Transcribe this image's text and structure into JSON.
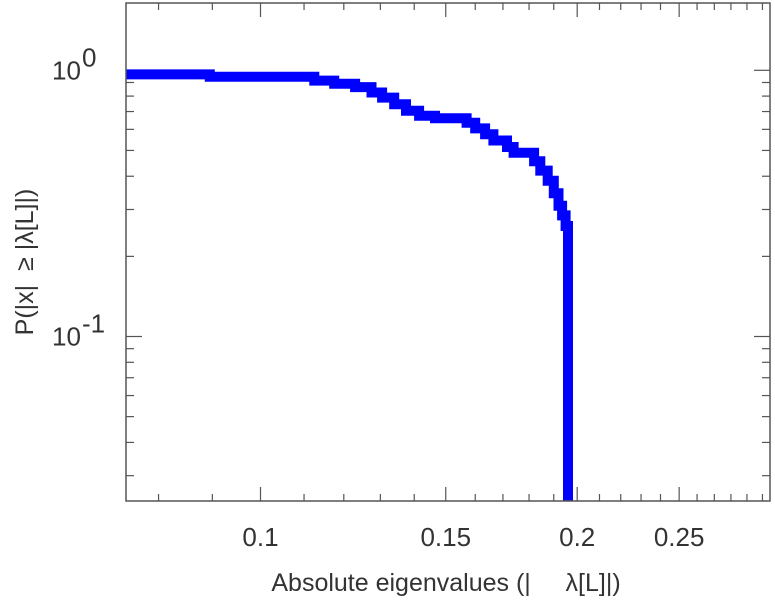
{
  "chart_data": {
    "type": "line",
    "title": "",
    "xlabel": "Absolute eigenvalues (|     λ[L]|)",
    "ylabel": "P(|x|  ≥ |λ[L]|)",
    "xscale": "log",
    "yscale": "log",
    "xlim": [
      0.0745,
      0.305
    ],
    "ylim": [
      0.0241,
      1.79
    ],
    "grid": false,
    "legend": "none",
    "line_color": "#0000ff",
    "x_ticks": [
      {
        "value": 0.1,
        "label": "0.1"
      },
      {
        "value": 0.15,
        "label": "0.15"
      },
      {
        "value": 0.2,
        "label": "0.2"
      },
      {
        "value": 0.25,
        "label": "0.25"
      }
    ],
    "y_ticks": [
      {
        "value": 1,
        "base": "10",
        "exp": "0"
      },
      {
        "value": 0.1,
        "base": "10",
        "exp": "-1"
      }
    ],
    "series": [
      {
        "x": [
          0.0745,
          0.0895,
          0.0895,
          0.1125,
          0.1125,
          0.1175,
          0.1175,
          0.123,
          0.123,
          0.1275,
          0.1275,
          0.1305,
          0.1305,
          0.134,
          0.134,
          0.1375,
          0.1375,
          0.1415,
          0.1415,
          0.1465,
          0.1465,
          0.157,
          0.157,
          0.16,
          0.16,
          0.1635,
          0.1635,
          0.1665,
          0.1665,
          0.1715,
          0.1715,
          0.174,
          0.174,
          0.182,
          0.182,
          0.1845,
          0.1845,
          0.1875,
          0.1875,
          0.19,
          0.19,
          0.192,
          0.192,
          0.1935,
          0.1935,
          0.195,
          0.195,
          0.196,
          0.196
        ],
        "y": [
          0.965,
          0.965,
          0.945,
          0.945,
          0.915,
          0.915,
          0.89,
          0.89,
          0.865,
          0.865,
          0.825,
          0.825,
          0.79,
          0.79,
          0.745,
          0.745,
          0.705,
          0.705,
          0.675,
          0.675,
          0.66,
          0.66,
          0.635,
          0.635,
          0.605,
          0.605,
          0.575,
          0.575,
          0.545,
          0.545,
          0.515,
          0.515,
          0.49,
          0.49,
          0.455,
          0.455,
          0.42,
          0.42,
          0.385,
          0.385,
          0.345,
          0.345,
          0.31,
          0.31,
          0.285,
          0.285,
          0.26,
          0.26,
          0.0241
        ]
      }
    ]
  }
}
